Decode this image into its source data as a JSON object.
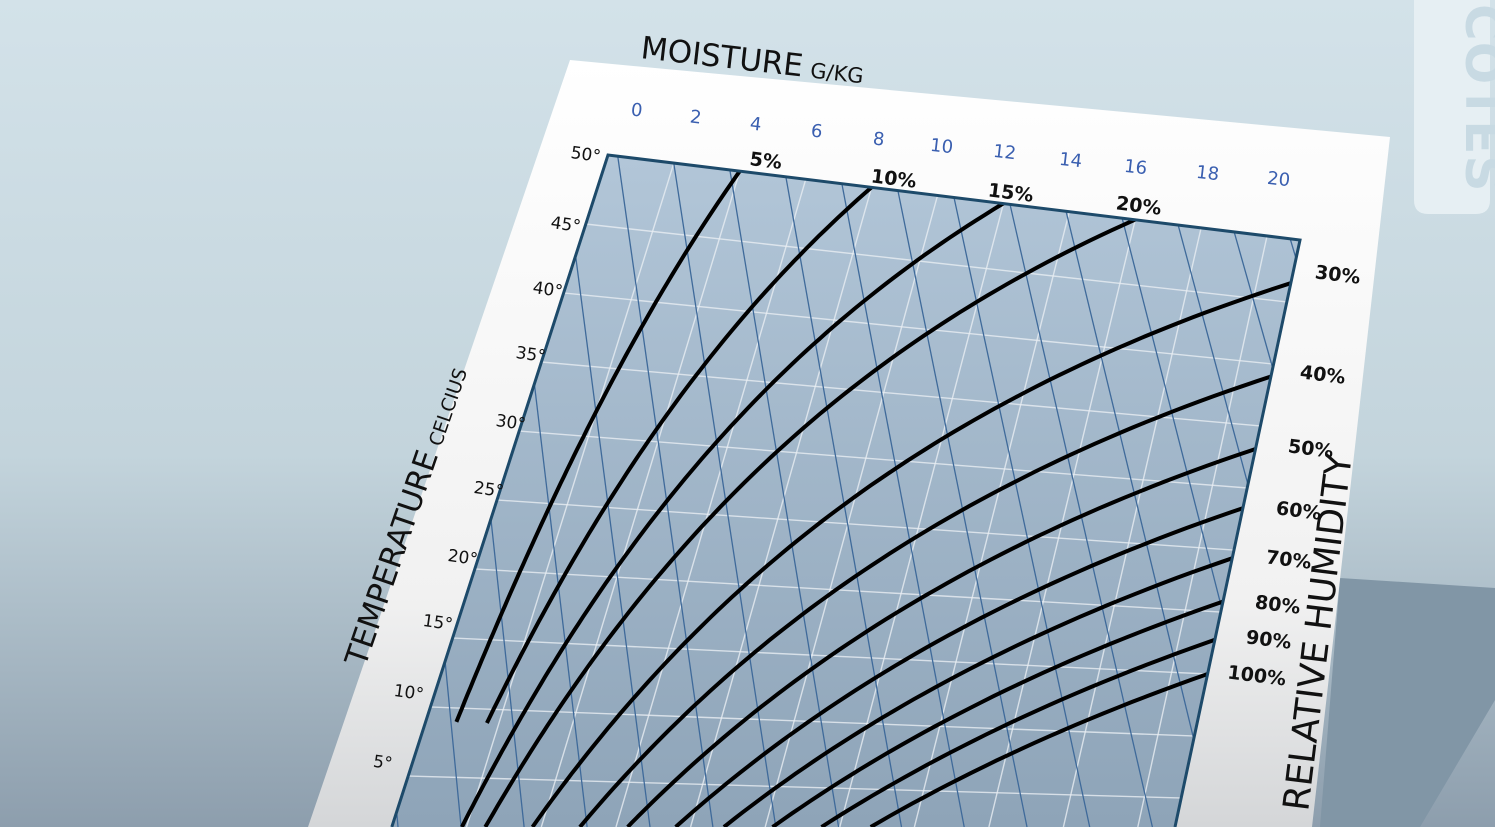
{
  "brand": {
    "logo_text": "COTES"
  },
  "chart_data": {
    "type": "line",
    "title": "",
    "xlabel": "MOISTURE",
    "xlabel_unit": "G/KG",
    "ylabel": "TEMPERATURE",
    "ylabel_unit": "CELCIUS",
    "right_label": "RELATIVE HUMIDITY",
    "x_ticks": [
      "0",
      "2",
      "4",
      "6",
      "8",
      "10",
      "12",
      "14",
      "16",
      "18",
      "20"
    ],
    "y_ticks": [
      "50°",
      "45°",
      "40°",
      "35°",
      "30°",
      "25°",
      "20°",
      "15°",
      "10°",
      "5°"
    ],
    "xlim": [
      0,
      21
    ],
    "ylim": [
      0,
      50
    ],
    "series": [
      {
        "name": "5%",
        "rh": 5
      },
      {
        "name": "10%",
        "rh": 10
      },
      {
        "name": "15%",
        "rh": 15
      },
      {
        "name": "20%",
        "rh": 20
      },
      {
        "name": "30%",
        "rh": 30
      },
      {
        "name": "40%",
        "rh": 40
      },
      {
        "name": "50%",
        "rh": 50
      },
      {
        "name": "60%",
        "rh": 60
      },
      {
        "name": "70%",
        "rh": 70
      },
      {
        "name": "80%",
        "rh": 80
      },
      {
        "name": "90%",
        "rh": 90
      },
      {
        "name": "100%",
        "rh": 100
      }
    ],
    "grid": true,
    "colors": {
      "curves": "#000000",
      "tick_labels_x": "#3a5fb0",
      "plot_fill": "#a9bfd2",
      "border": "#1d4a6a",
      "diagonal_lines": "#3f6a9a"
    }
  }
}
